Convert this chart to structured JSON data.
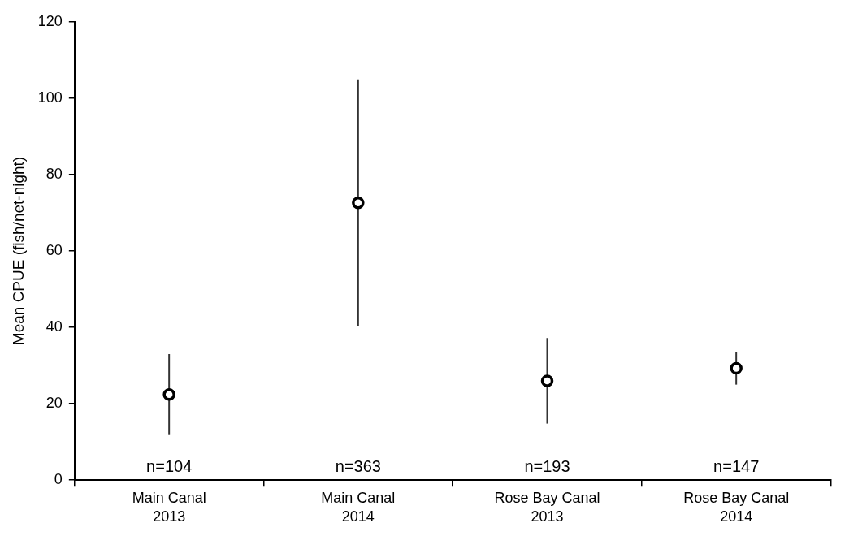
{
  "chart_data": {
    "type": "scatter",
    "ylabel": "Mean CPUE (fish/net-night)",
    "categories": [
      "Main Canal 2013",
      "Main Canal 2014",
      "Rose Bay Canal 2013",
      "Rose Bay Canal 2014"
    ],
    "series": [
      {
        "color": "#000000",
        "values": [
          22.4,
          72.6,
          26.0,
          29.3
        ],
        "errors": [
          10.6,
          32.3,
          11.2,
          4.3
        ]
      }
    ],
    "ylim": [
      0,
      120
    ],
    "yticks": [
      0,
      20,
      40,
      60,
      80,
      100,
      120
    ],
    "grid": false,
    "legend": false,
    "marker": "circle",
    "annotations": [
      "n=104",
      "n=363",
      "n=193",
      "n=147"
    ]
  }
}
